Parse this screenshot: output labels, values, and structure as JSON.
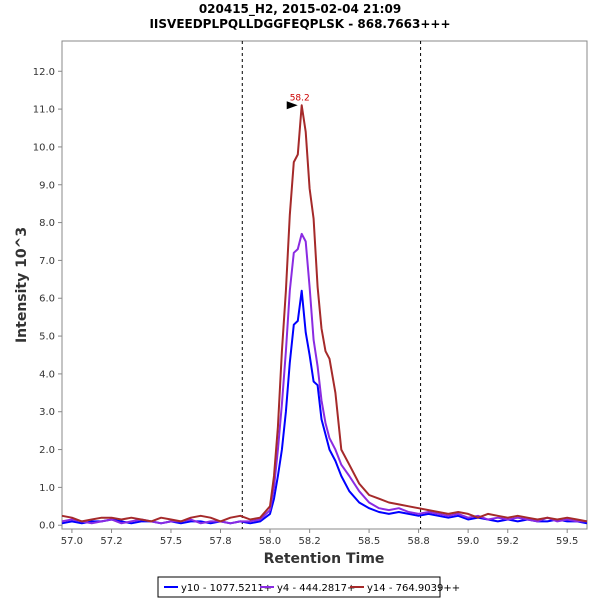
{
  "chart_data": {
    "type": "line",
    "title": "020415_H2, 2015-02-04 21:09",
    "subtitle": "IISVEEDPLPQLLDGGFEQPLSK - 868.7663+++",
    "xlabel": "Retention Time",
    "ylabel": "Intensity 10^3",
    "xlim": [
      56.95,
      59.6
    ],
    "ylim": [
      -0.1,
      12.8
    ],
    "xticks": [
      "57.0",
      "57.2",
      "57.5",
      "57.8",
      "58.0",
      "58.2",
      "58.5",
      "58.8",
      "59.0",
      "59.2",
      "59.5"
    ],
    "xtick_values": [
      57.0,
      57.2,
      57.5,
      57.75,
      58.0,
      58.2,
      58.5,
      58.75,
      59.0,
      59.2,
      59.5
    ],
    "yticks": [
      "0.0",
      "1.0",
      "2.0",
      "3.0",
      "4.0",
      "5.0",
      "6.0",
      "7.0",
      "8.0",
      "9.0",
      "10.0",
      "11.0",
      "12.0"
    ],
    "ytick_values": [
      0,
      1,
      2,
      3,
      4,
      5,
      6,
      7,
      8,
      9,
      10,
      11,
      12
    ],
    "vlines": [
      57.86,
      58.76
    ],
    "peak_annotation": {
      "label": "58.2",
      "x": 58.16,
      "y": 11.1
    },
    "series": [
      {
        "name": "y10 - 1077.5211+",
        "color": "#0000ff",
        "x": [
          56.95,
          57.0,
          57.05,
          57.1,
          57.15,
          57.2,
          57.25,
          57.3,
          57.35,
          57.4,
          57.45,
          57.5,
          57.55,
          57.6,
          57.65,
          57.7,
          57.75,
          57.8,
          57.85,
          57.9,
          57.95,
          58.0,
          58.02,
          58.04,
          58.06,
          58.08,
          58.1,
          58.12,
          58.14,
          58.16,
          58.18,
          58.2,
          58.22,
          58.24,
          58.26,
          58.28,
          58.3,
          58.33,
          58.36,
          58.4,
          58.45,
          58.5,
          58.55,
          58.6,
          58.65,
          58.7,
          58.75,
          58.8,
          58.85,
          58.9,
          58.95,
          59.0,
          59.05,
          59.1,
          59.15,
          59.2,
          59.25,
          59.3,
          59.35,
          59.4,
          59.45,
          59.5,
          59.55,
          59.6
        ],
        "values": [
          0.05,
          0.1,
          0.05,
          0.1,
          0.1,
          0.15,
          0.1,
          0.05,
          0.1,
          0.1,
          0.05,
          0.1,
          0.05,
          0.1,
          0.1,
          0.05,
          0.1,
          0.05,
          0.1,
          0.05,
          0.1,
          0.3,
          0.7,
          1.3,
          2.0,
          3.0,
          4.3,
          5.3,
          5.4,
          6.2,
          5.1,
          4.5,
          3.8,
          3.7,
          2.8,
          2.4,
          2.0,
          1.7,
          1.3,
          0.9,
          0.6,
          0.45,
          0.35,
          0.3,
          0.35,
          0.3,
          0.25,
          0.3,
          0.25,
          0.2,
          0.25,
          0.15,
          0.2,
          0.15,
          0.1,
          0.15,
          0.1,
          0.15,
          0.1,
          0.1,
          0.15,
          0.1,
          0.1,
          0.05
        ]
      },
      {
        "name": "y4 - 444.2817+",
        "color": "#8a2be2",
        "x": [
          56.95,
          57.0,
          57.05,
          57.1,
          57.15,
          57.2,
          57.25,
          57.3,
          57.35,
          57.4,
          57.45,
          57.5,
          57.55,
          57.6,
          57.65,
          57.7,
          57.75,
          57.8,
          57.85,
          57.9,
          57.95,
          58.0,
          58.02,
          58.04,
          58.06,
          58.08,
          58.1,
          58.12,
          58.14,
          58.16,
          58.18,
          58.2,
          58.22,
          58.24,
          58.26,
          58.28,
          58.3,
          58.33,
          58.36,
          58.4,
          58.45,
          58.5,
          58.55,
          58.6,
          58.65,
          58.7,
          58.75,
          58.8,
          58.85,
          58.9,
          58.95,
          59.0,
          59.05,
          59.1,
          59.15,
          59.2,
          59.25,
          59.3,
          59.35,
          59.4,
          59.45,
          59.5,
          59.55,
          59.6
        ],
        "values": [
          0.1,
          0.15,
          0.1,
          0.05,
          0.1,
          0.15,
          0.05,
          0.1,
          0.15,
          0.1,
          0.05,
          0.1,
          0.1,
          0.15,
          0.05,
          0.1,
          0.1,
          0.05,
          0.1,
          0.1,
          0.15,
          0.4,
          1.0,
          2.0,
          3.2,
          4.6,
          6.2,
          7.2,
          7.3,
          7.7,
          7.5,
          6.3,
          4.9,
          4.2,
          3.3,
          2.7,
          2.3,
          2.0,
          1.6,
          1.3,
          0.9,
          0.6,
          0.45,
          0.4,
          0.45,
          0.35,
          0.3,
          0.35,
          0.3,
          0.25,
          0.3,
          0.2,
          0.25,
          0.15,
          0.2,
          0.15,
          0.2,
          0.15,
          0.1,
          0.2,
          0.1,
          0.15,
          0.1,
          0.1
        ]
      },
      {
        "name": "y14 - 764.9039++",
        "color": "#a52a2a",
        "x": [
          56.95,
          57.0,
          57.05,
          57.1,
          57.15,
          57.2,
          57.25,
          57.3,
          57.35,
          57.4,
          57.45,
          57.5,
          57.55,
          57.6,
          57.65,
          57.7,
          57.75,
          57.8,
          57.85,
          57.9,
          57.95,
          58.0,
          58.02,
          58.04,
          58.06,
          58.08,
          58.1,
          58.12,
          58.14,
          58.16,
          58.18,
          58.2,
          58.22,
          58.24,
          58.26,
          58.28,
          58.3,
          58.33,
          58.36,
          58.4,
          58.45,
          58.5,
          58.55,
          58.6,
          58.65,
          58.7,
          58.75,
          58.8,
          58.85,
          58.9,
          58.95,
          59.0,
          59.05,
          59.1,
          59.15,
          59.2,
          59.25,
          59.3,
          59.35,
          59.4,
          59.45,
          59.5,
          59.55,
          59.6
        ],
        "values": [
          0.25,
          0.2,
          0.1,
          0.15,
          0.2,
          0.2,
          0.15,
          0.2,
          0.15,
          0.1,
          0.2,
          0.15,
          0.1,
          0.2,
          0.25,
          0.2,
          0.1,
          0.2,
          0.25,
          0.15,
          0.2,
          0.5,
          1.3,
          2.6,
          4.6,
          6.2,
          8.2,
          9.6,
          9.8,
          11.1,
          10.4,
          8.9,
          8.1,
          6.3,
          5.2,
          4.6,
          4.4,
          3.5,
          2.0,
          1.6,
          1.1,
          0.8,
          0.7,
          0.6,
          0.55,
          0.5,
          0.45,
          0.4,
          0.35,
          0.3,
          0.35,
          0.3,
          0.2,
          0.3,
          0.25,
          0.2,
          0.25,
          0.2,
          0.15,
          0.2,
          0.15,
          0.2,
          0.15,
          0.1
        ]
      }
    ],
    "legend_position": "bottom-center"
  }
}
